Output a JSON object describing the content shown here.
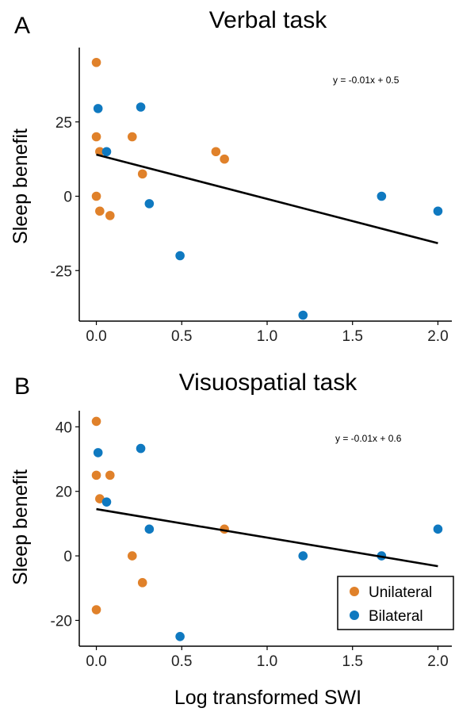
{
  "colors": {
    "unilateral": "#e0812a",
    "bilateral": "#0f79c0",
    "fit": "#000000"
  },
  "x_axis_label": "Log transformed SWI",
  "legend": {
    "placement": "bottom-right of panel B",
    "entries": [
      "Unilateral",
      "Bilateral"
    ]
  },
  "chart_data": [
    {
      "panel": "A",
      "type": "scatter",
      "title": "Verbal task",
      "xlabel": "",
      "ylabel": "Sleep benefit",
      "equation": "y = -0.01x + 0.5",
      "xlim": [
        -0.1,
        2.1
      ],
      "ylim": [
        -42,
        50
      ],
      "x_ticks": [
        0.0,
        0.5,
        1.0,
        1.5,
        2.0
      ],
      "x_tick_labels": [
        "0.0",
        "0.5",
        "1.0",
        "1.5",
        "2.0"
      ],
      "y_ticks": [
        25,
        0,
        -25
      ],
      "y_tick_labels": [
        "25",
        "0",
        "-25"
      ],
      "fit_line": {
        "x": [
          0.0,
          2.0
        ],
        "y": [
          14,
          -15.8
        ]
      },
      "series": [
        {
          "name": "Unilateral",
          "points": [
            [
              0.0,
              45
            ],
            [
              0.0,
              20
            ],
            [
              0.02,
              15
            ],
            [
              0.0,
              0
            ],
            [
              0.02,
              -5
            ],
            [
              0.08,
              -6.5
            ],
            [
              0.21,
              20
            ],
            [
              0.27,
              7.5
            ],
            [
              0.7,
              15
            ],
            [
              0.75,
              12.5
            ]
          ]
        },
        {
          "name": "Bilateral",
          "points": [
            [
              0.01,
              29.5
            ],
            [
              0.26,
              30
            ],
            [
              0.06,
              15
            ],
            [
              0.31,
              -2.5
            ],
            [
              0.49,
              -20
            ],
            [
              1.21,
              -40
            ],
            [
              1.67,
              0
            ],
            [
              2.0,
              -5
            ]
          ]
        }
      ]
    },
    {
      "panel": "B",
      "type": "scatter",
      "title": "Visuospatial task",
      "xlabel": "Log transformed SWI",
      "ylabel": "Sleep benefit",
      "equation": "y = -0.01x + 0.6",
      "xlim": [
        -0.1,
        2.1
      ],
      "ylim": [
        -28,
        45
      ],
      "x_ticks": [
        0.0,
        0.5,
        1.0,
        1.5,
        2.0
      ],
      "x_tick_labels": [
        "0.0",
        "0.5",
        "1.0",
        "1.5",
        "2.0"
      ],
      "y_ticks": [
        40,
        20,
        0,
        -20
      ],
      "y_tick_labels": [
        "40",
        "20",
        "0",
        "-20"
      ],
      "fit_line": {
        "x": [
          0.0,
          2.0
        ],
        "y": [
          14.5,
          -3.2
        ]
      },
      "series": [
        {
          "name": "Unilateral",
          "points": [
            [
              0.0,
              41.7
            ],
            [
              0.0,
              25
            ],
            [
              0.08,
              25
            ],
            [
              0.02,
              17.7
            ],
            [
              0.21,
              0
            ],
            [
              0.27,
              -8.3
            ],
            [
              0.0,
              -16.7
            ],
            [
              0.75,
              8.3
            ]
          ]
        },
        {
          "name": "Bilateral",
          "points": [
            [
              0.01,
              32
            ],
            [
              0.26,
              33.3
            ],
            [
              0.06,
              16.7
            ],
            [
              0.31,
              8.3
            ],
            [
              0.49,
              -25
            ],
            [
              1.21,
              0
            ],
            [
              1.67,
              0
            ],
            [
              2.0,
              8.3
            ]
          ]
        }
      ]
    }
  ]
}
